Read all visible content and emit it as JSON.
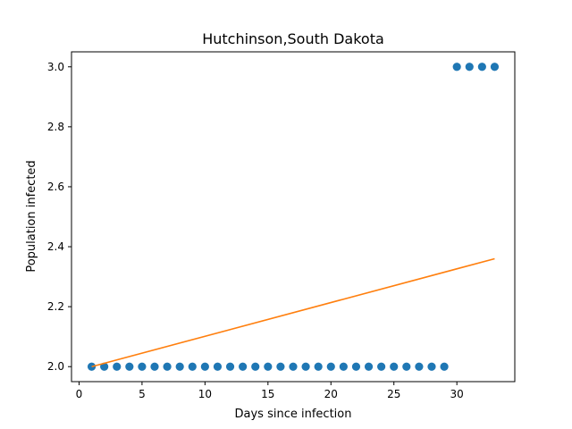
{
  "chart_data": {
    "type": "scatter",
    "title": "Hutchinson,South Dakota",
    "xlabel": "Days since infection",
    "ylabel": "Population infected",
    "xlim": [
      -0.6,
      34.6
    ],
    "ylim": [
      1.95,
      3.05
    ],
    "xticks": [
      0,
      5,
      10,
      15,
      20,
      25,
      30
    ],
    "yticks": [
      "2.0",
      "2.2",
      "2.4",
      "2.6",
      "2.8",
      "3.0"
    ],
    "grid": false,
    "series": [
      {
        "kind": "scatter",
        "color": "#1f77b4",
        "x": [
          1,
          2,
          3,
          4,
          5,
          6,
          7,
          8,
          9,
          10,
          11,
          12,
          13,
          14,
          15,
          16,
          17,
          18,
          19,
          20,
          21,
          22,
          23,
          24,
          25,
          26,
          27,
          28,
          29,
          30,
          31,
          32,
          33
        ],
        "y": [
          2,
          2,
          2,
          2,
          2,
          2,
          2,
          2,
          2,
          2,
          2,
          2,
          2,
          2,
          2,
          2,
          2,
          2,
          2,
          2,
          2,
          2,
          2,
          2,
          2,
          2,
          2,
          2,
          2,
          3,
          3,
          3,
          3
        ]
      },
      {
        "kind": "line",
        "color": "#ff7f0e",
        "x": [
          1,
          33
        ],
        "y": [
          2.0,
          2.36
        ]
      }
    ]
  }
}
